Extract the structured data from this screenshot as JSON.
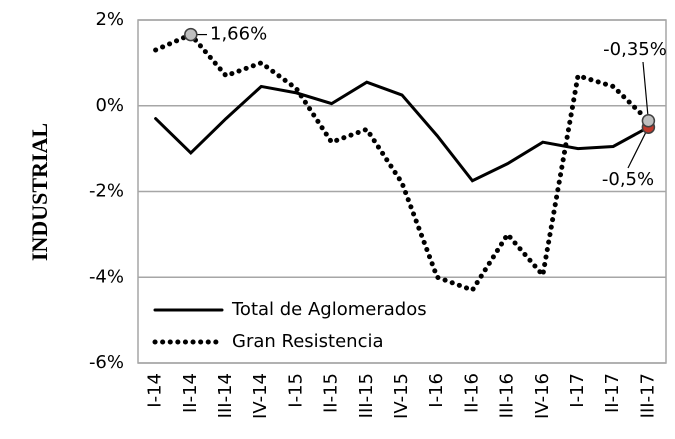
{
  "chart_data": {
    "type": "line",
    "ylabel": "INDUSTRIAL",
    "categories": [
      "I-14",
      "II-14",
      "III-14",
      "IV-14",
      "I-15",
      "II-15",
      "III-15",
      "IV-15",
      "I-16",
      "II-16",
      "III-16",
      "IV-16",
      "I-17",
      "II-17",
      "III-17"
    ],
    "series": [
      {
        "name": "Total de Aglomerados",
        "color": "#000000",
        "dash": "solid",
        "values": [
          -0.3,
          -1.1,
          -0.3,
          0.45,
          0.3,
          0.05,
          0.55,
          0.25,
          -0.7,
          -1.75,
          -1.35,
          -0.85,
          -1.0,
          -0.95,
          -0.5
        ],
        "value_labels": [
          null,
          null,
          null,
          null,
          null,
          null,
          null,
          null,
          null,
          null,
          null,
          null,
          null,
          null,
          "-0,5%"
        ]
      },
      {
        "name": "Gran Resistencia",
        "color": "#000000",
        "dash": "dotted",
        "values": [
          1.3,
          1.66,
          0.7,
          1.0,
          0.4,
          -0.85,
          -0.55,
          -1.8,
          -4.0,
          -4.3,
          -3.0,
          -3.95,
          0.7,
          0.45,
          -0.35
        ],
        "value_labels": [
          null,
          "1,66%",
          null,
          null,
          null,
          null,
          null,
          null,
          null,
          null,
          null,
          null,
          null,
          null,
          "-0,35%"
        ]
      }
    ],
    "ylim": [
      -6,
      2
    ],
    "yticks": [
      {
        "value": -6,
        "label": "-6%"
      },
      {
        "value": -4,
        "label": "-4%"
      },
      {
        "value": -2,
        "label": "-2%"
      },
      {
        "value": 0,
        "label": "0%"
      },
      {
        "value": 2,
        "label": "2%"
      }
    ],
    "grid": true,
    "legend": "lower-left"
  }
}
